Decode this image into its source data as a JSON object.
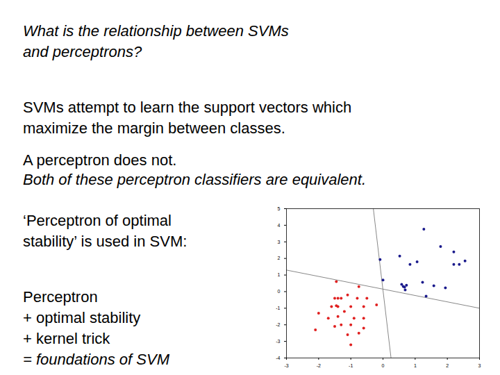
{
  "slide": {
    "question": [
      "What is the relationship between SVMs",
      "and perceptrons?"
    ],
    "svm_text": [
      "SVMs attempt to learn the support vectors which",
      "maximize the margin between classes."
    ],
    "perceptron_text": [
      "A perceptron does not."
    ],
    "equivalence": [
      "Both of these perceptron classifiers are equivalent."
    ],
    "optimal_stability": [
      "‘Perceptron of optimal",
      "stability’ is used in SVM:"
    ],
    "formula": [
      "Perceptron",
      "+ optimal stability",
      "+ kernel trick",
      "= foundations of SVM"
    ]
  },
  "chart_data": {
    "type": "scatter",
    "xlim": [
      -3,
      3
    ],
    "ylim": [
      -4,
      5
    ],
    "xticks": [
      -3,
      -2,
      -1,
      0,
      1,
      2,
      3
    ],
    "yticks": [
      -4,
      -3,
      -2,
      -1,
      0,
      1,
      2,
      3,
      4,
      5
    ],
    "series": [
      {
        "color": "#1a1a8c",
        "x": [
          1.27,
          1.79,
          -0.09,
          0.52,
          0.84,
          1.06,
          2.2,
          2.55,
          2.2,
          2.37,
          0.0,
          0.58,
          0.63,
          0.67,
          0.69,
          0.73,
          1.23,
          1.58,
          1.94,
          1.34
        ],
        "y": [
          3.76,
          2.72,
          1.93,
          2.14,
          1.64,
          1.8,
          2.39,
          1.85,
          1.64,
          1.64,
          0.7,
          0.44,
          0.31,
          0.27,
          0.1,
          0.39,
          0.56,
          0.35,
          0.23,
          -0.27
        ]
      },
      {
        "color": "#e02020",
        "x": [
          -1.45,
          -1.5,
          -1.4,
          -1.3,
          -1.1,
          -0.75,
          -0.8,
          -0.5,
          -1.6,
          -1.45,
          -1.4,
          -1.0,
          -0.6,
          -0.2,
          -2.0,
          -1.2,
          -1.7,
          -1.4,
          -0.9,
          -0.6,
          -1.5,
          -1.0,
          -0.6,
          -2.1,
          -1.1,
          -0.75,
          -1.0,
          -1.3
        ],
        "y": [
          0.6,
          -0.4,
          -0.4,
          -0.4,
          -0.2,
          0.3,
          -0.4,
          -0.4,
          -0.9,
          -0.85,
          -0.9,
          -0.9,
          -0.9,
          -0.8,
          -1.3,
          -1.2,
          -1.6,
          -1.5,
          -1.6,
          -1.6,
          -2.1,
          -2.0,
          -2.2,
          -2.3,
          -2.6,
          -2.5,
          -3.2,
          -2.0
        ]
      }
    ],
    "lines": [
      {
        "color": "#888888",
        "x": [
          -0.3,
          0.25
        ],
        "y": [
          5,
          -4
        ]
      },
      {
        "color": "#888888",
        "x": [
          -3,
          3
        ],
        "y": [
          1.3,
          -1.0
        ]
      }
    ]
  }
}
